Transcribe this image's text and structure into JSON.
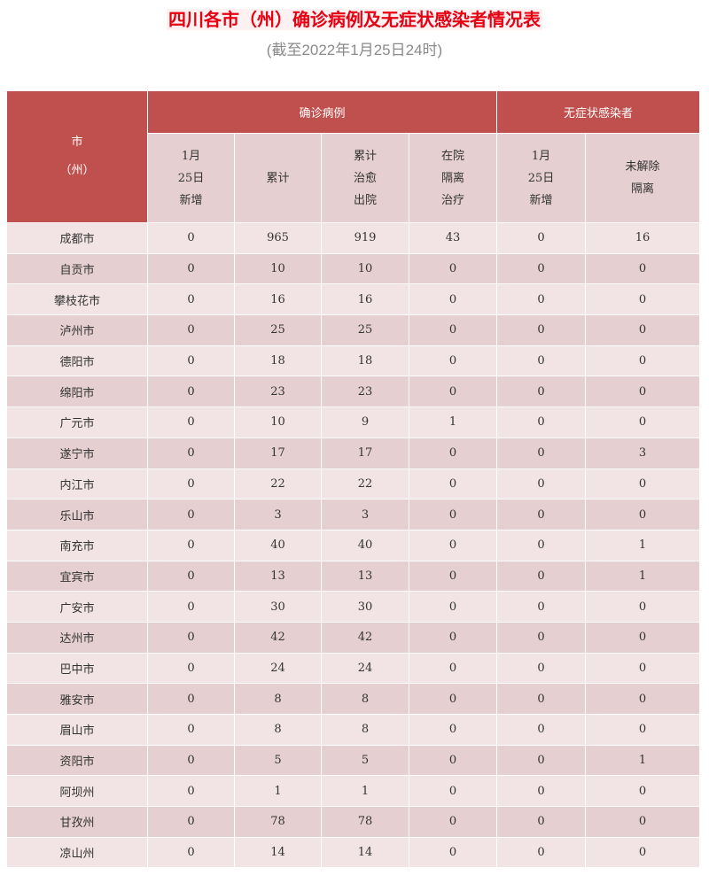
{
  "title": "四川各市（州）确诊病例及无症状感染者情况表",
  "subtitle": "(截至2022年1月25日24时)",
  "colors": {
    "title": "#e60012",
    "header": "#c0504d",
    "row_light": "#f2e4e5",
    "row_dark": "#e6cfd0"
  },
  "header": {
    "city": [
      "市",
      "（州）"
    ],
    "group_confirmed": "确诊病例",
    "group_asymptomatic": "无症状感染者",
    "columns": [
      [
        "1月",
        "25日",
        "新增"
      ],
      [
        "累计"
      ],
      [
        "累计",
        "治愈",
        "出院"
      ],
      [
        "在院",
        "隔离",
        "治疗"
      ],
      [
        "1月",
        "25日",
        "新增"
      ],
      [
        "未解除",
        "隔离"
      ]
    ]
  },
  "rows": [
    [
      "成都市",
      "0",
      "965",
      "919",
      "43",
      "0",
      "16"
    ],
    [
      "自贡市",
      "0",
      "10",
      "10",
      "0",
      "0",
      "0"
    ],
    [
      "攀枝花市",
      "0",
      "16",
      "16",
      "0",
      "0",
      "0"
    ],
    [
      "泸州市",
      "0",
      "25",
      "25",
      "0",
      "0",
      "0"
    ],
    [
      "德阳市",
      "0",
      "18",
      "18",
      "0",
      "0",
      "0"
    ],
    [
      "绵阳市",
      "0",
      "23",
      "23",
      "0",
      "0",
      "0"
    ],
    [
      "广元市",
      "0",
      "10",
      "9",
      "1",
      "0",
      "0"
    ],
    [
      "遂宁市",
      "0",
      "17",
      "17",
      "0",
      "0",
      "3"
    ],
    [
      "内江市",
      "0",
      "22",
      "22",
      "0",
      "0",
      "0"
    ],
    [
      "乐山市",
      "0",
      "3",
      "3",
      "0",
      "0",
      "0"
    ],
    [
      "南充市",
      "0",
      "40",
      "40",
      "0",
      "0",
      "1"
    ],
    [
      "宜宾市",
      "0",
      "13",
      "13",
      "0",
      "0",
      "1"
    ],
    [
      "广安市",
      "0",
      "30",
      "30",
      "0",
      "0",
      "0"
    ],
    [
      "达州市",
      "0",
      "42",
      "42",
      "0",
      "0",
      "0"
    ],
    [
      "巴中市",
      "0",
      "24",
      "24",
      "0",
      "0",
      "0"
    ],
    [
      "雅安市",
      "0",
      "8",
      "8",
      "0",
      "0",
      "0"
    ],
    [
      "眉山市",
      "0",
      "8",
      "8",
      "0",
      "0",
      "0"
    ],
    [
      "资阳市",
      "0",
      "5",
      "5",
      "0",
      "0",
      "1"
    ],
    [
      "阿坝州",
      "0",
      "1",
      "1",
      "0",
      "0",
      "0"
    ],
    [
      "甘孜州",
      "0",
      "78",
      "78",
      "0",
      "0",
      "0"
    ],
    [
      "凉山州",
      "0",
      "14",
      "14",
      "0",
      "0",
      "0"
    ]
  ]
}
